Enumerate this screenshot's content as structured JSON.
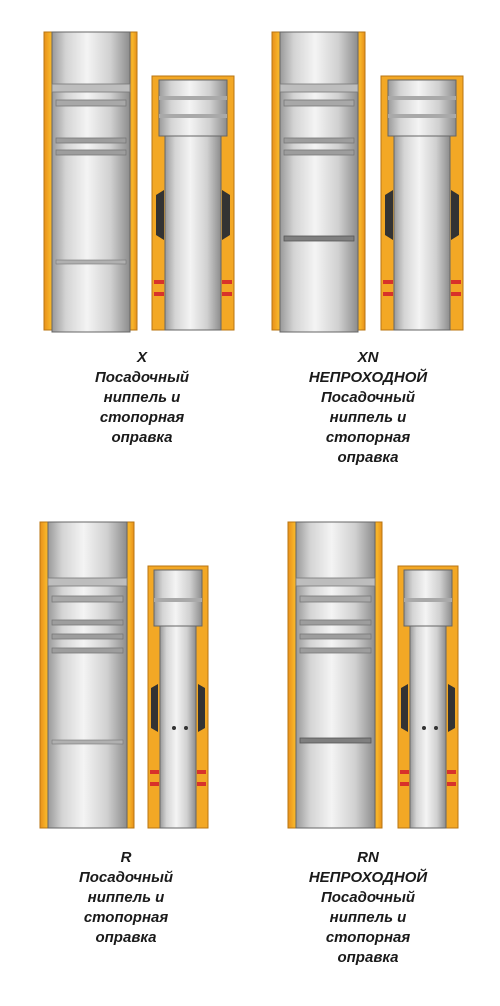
{
  "colors": {
    "housing_orange": "#f2a51f",
    "housing_orange_dark": "#d98a10",
    "steel_light": "#e6e6e6",
    "steel_mid": "#c8c8c8",
    "steel_dark": "#8f8f8f",
    "seal_red": "#d8322a",
    "seal_black": "#2a2a2a",
    "edge": "#555555"
  },
  "panels": [
    {
      "code": "X",
      "lines": [
        "Посадочный",
        "ниппель и",
        "стопорная",
        "оправка"
      ]
    },
    {
      "code": "XN",
      "lines": [
        "НЕПРОХОДНОЙ",
        "Посадочный",
        "ниппель и",
        "стопорная",
        "оправка"
      ]
    },
    {
      "code": "R",
      "lines": [
        "Посадочный",
        "ниппель и",
        "стопорная",
        "оправка"
      ]
    },
    {
      "code": "RN",
      "lines": [
        "НЕПРОХОДНОЙ",
        "Посадочный",
        "ниппель и",
        "стопорная",
        "оправка"
      ]
    }
  ]
}
